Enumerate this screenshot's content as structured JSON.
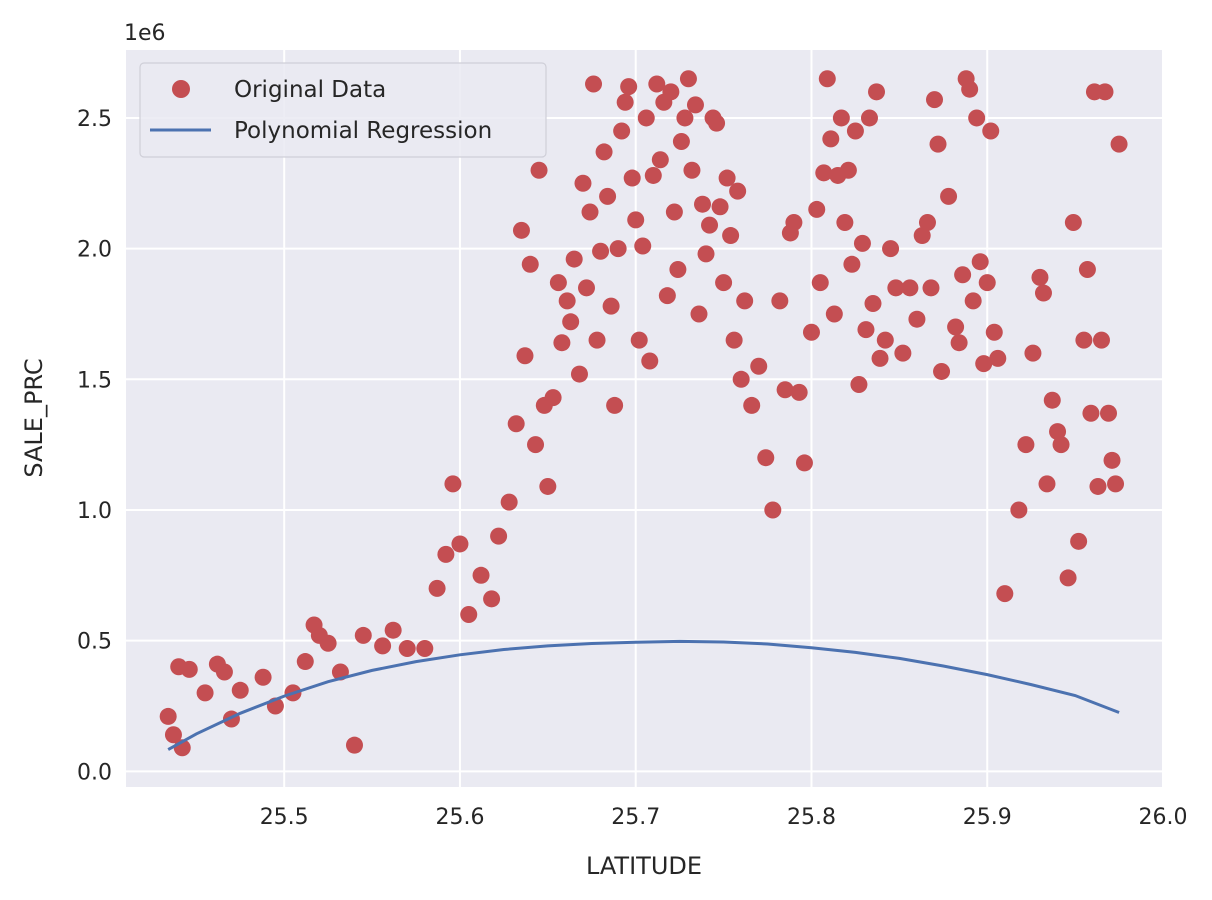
{
  "chart_data": {
    "type": "scatter",
    "title": "",
    "xlabel": "LATITUDE",
    "ylabel": "SALE_PRC",
    "y_offset_text": "1e6",
    "xlim": [
      25.41,
      26.0
    ],
    "ylim": [
      -60000,
      2760000
    ],
    "xticks": [
      25.5,
      25.6,
      25.7,
      25.8,
      25.9,
      26.0
    ],
    "xtick_labels": [
      "25.5",
      "25.6",
      "25.7",
      "25.8",
      "25.9",
      "26.0"
    ],
    "yticks": [
      0,
      500000,
      1000000,
      1500000,
      2000000,
      2500000
    ],
    "ytick_labels": [
      "0.0",
      "0.5",
      "1.0",
      "1.5",
      "2.0",
      "2.5"
    ],
    "grid": true,
    "legend_position": "top-left",
    "colors": {
      "background": "#EAEAF2",
      "grid": "#FFFFFF",
      "points": "#C44E52",
      "line": "#4C72B0"
    },
    "series": [
      {
        "name": "Original Data",
        "kind": "scatter",
        "points": [
          [
            25.434,
            210000
          ],
          [
            25.437,
            140000
          ],
          [
            25.44,
            400000
          ],
          [
            25.442,
            90000
          ],
          [
            25.446,
            390000
          ],
          [
            25.455,
            300000
          ],
          [
            25.462,
            410000
          ],
          [
            25.466,
            380000
          ],
          [
            25.47,
            200000
          ],
          [
            25.475,
            310000
          ],
          [
            25.488,
            360000
          ],
          [
            25.495,
            250000
          ],
          [
            25.505,
            300000
          ],
          [
            25.512,
            420000
          ],
          [
            25.517,
            560000
          ],
          [
            25.52,
            520000
          ],
          [
            25.525,
            490000
          ],
          [
            25.532,
            380000
          ],
          [
            25.54,
            100000
          ],
          [
            25.545,
            520000
          ],
          [
            25.556,
            480000
          ],
          [
            25.562,
            540000
          ],
          [
            25.57,
            470000
          ],
          [
            25.58,
            470000
          ],
          [
            25.587,
            700000
          ],
          [
            25.592,
            830000
          ],
          [
            25.596,
            1100000
          ],
          [
            25.6,
            870000
          ],
          [
            25.605,
            600000
          ],
          [
            25.612,
            750000
          ],
          [
            25.618,
            660000
          ],
          [
            25.622,
            900000
          ],
          [
            25.628,
            1030000
          ],
          [
            25.632,
            1330000
          ],
          [
            25.635,
            2070000
          ],
          [
            25.637,
            1590000
          ],
          [
            25.64,
            1940000
          ],
          [
            25.643,
            1250000
          ],
          [
            25.645,
            2300000
          ],
          [
            25.648,
            1400000
          ],
          [
            25.65,
            1090000
          ],
          [
            25.653,
            1430000
          ],
          [
            25.656,
            1870000
          ],
          [
            25.658,
            1640000
          ],
          [
            25.661,
            1800000
          ],
          [
            25.663,
            1720000
          ],
          [
            25.665,
            1960000
          ],
          [
            25.668,
            1520000
          ],
          [
            25.67,
            2250000
          ],
          [
            25.672,
            1850000
          ],
          [
            25.674,
            2140000
          ],
          [
            25.676,
            2630000
          ],
          [
            25.678,
            1650000
          ],
          [
            25.68,
            1990000
          ],
          [
            25.682,
            2370000
          ],
          [
            25.684,
            2200000
          ],
          [
            25.686,
            1780000
          ],
          [
            25.688,
            1400000
          ],
          [
            25.69,
            2000000
          ],
          [
            25.692,
            2450000
          ],
          [
            25.694,
            2560000
          ],
          [
            25.696,
            2620000
          ],
          [
            25.698,
            2270000
          ],
          [
            25.7,
            2110000
          ],
          [
            25.702,
            1650000
          ],
          [
            25.704,
            2010000
          ],
          [
            25.706,
            2500000
          ],
          [
            25.708,
            1570000
          ],
          [
            25.71,
            2280000
          ],
          [
            25.712,
            2630000
          ],
          [
            25.714,
            2340000
          ],
          [
            25.716,
            2560000
          ],
          [
            25.718,
            1820000
          ],
          [
            25.72,
            2600000
          ],
          [
            25.722,
            2140000
          ],
          [
            25.724,
            1920000
          ],
          [
            25.726,
            2410000
          ],
          [
            25.728,
            2500000
          ],
          [
            25.73,
            2650000
          ],
          [
            25.732,
            2300000
          ],
          [
            25.734,
            2550000
          ],
          [
            25.736,
            1750000
          ],
          [
            25.738,
            2170000
          ],
          [
            25.74,
            1980000
          ],
          [
            25.742,
            2090000
          ],
          [
            25.744,
            2500000
          ],
          [
            25.746,
            2480000
          ],
          [
            25.748,
            2160000
          ],
          [
            25.75,
            1870000
          ],
          [
            25.752,
            2270000
          ],
          [
            25.754,
            2050000
          ],
          [
            25.756,
            1650000
          ],
          [
            25.758,
            2220000
          ],
          [
            25.76,
            1500000
          ],
          [
            25.762,
            1800000
          ],
          [
            25.766,
            1400000
          ],
          [
            25.77,
            1550000
          ],
          [
            25.774,
            1200000
          ],
          [
            25.778,
            1000000
          ],
          [
            25.782,
            1800000
          ],
          [
            25.785,
            1460000
          ],
          [
            25.788,
            2060000
          ],
          [
            25.79,
            2100000
          ],
          [
            25.793,
            1450000
          ],
          [
            25.796,
            1180000
          ],
          [
            25.8,
            1680000
          ],
          [
            25.803,
            2150000
          ],
          [
            25.805,
            1870000
          ],
          [
            25.807,
            2290000
          ],
          [
            25.809,
            2650000
          ],
          [
            25.811,
            2420000
          ],
          [
            25.813,
            1750000
          ],
          [
            25.815,
            2280000
          ],
          [
            25.817,
            2500000
          ],
          [
            25.819,
            2100000
          ],
          [
            25.821,
            2300000
          ],
          [
            25.823,
            1940000
          ],
          [
            25.825,
            2450000
          ],
          [
            25.827,
            1480000
          ],
          [
            25.829,
            2020000
          ],
          [
            25.831,
            1690000
          ],
          [
            25.833,
            2500000
          ],
          [
            25.835,
            1790000
          ],
          [
            25.837,
            2600000
          ],
          [
            25.839,
            1580000
          ],
          [
            25.842,
            1650000
          ],
          [
            25.845,
            2000000
          ],
          [
            25.848,
            1850000
          ],
          [
            25.852,
            1600000
          ],
          [
            25.856,
            1850000
          ],
          [
            25.86,
            1730000
          ],
          [
            25.863,
            2050000
          ],
          [
            25.866,
            2100000
          ],
          [
            25.868,
            1850000
          ],
          [
            25.87,
            2570000
          ],
          [
            25.872,
            2400000
          ],
          [
            25.874,
            1530000
          ],
          [
            25.878,
            2200000
          ],
          [
            25.882,
            1700000
          ],
          [
            25.884,
            1640000
          ],
          [
            25.886,
            1900000
          ],
          [
            25.888,
            2650000
          ],
          [
            25.89,
            2610000
          ],
          [
            25.892,
            1800000
          ],
          [
            25.894,
            2500000
          ],
          [
            25.896,
            1950000
          ],
          [
            25.898,
            1560000
          ],
          [
            25.9,
            1870000
          ],
          [
            25.902,
            2450000
          ],
          [
            25.904,
            1680000
          ],
          [
            25.906,
            1580000
          ],
          [
            25.91,
            680000
          ],
          [
            25.918,
            1000000
          ],
          [
            25.922,
            1250000
          ],
          [
            25.926,
            1600000
          ],
          [
            25.93,
            1890000
          ],
          [
            25.932,
            1830000
          ],
          [
            25.934,
            1100000
          ],
          [
            25.937,
            1420000
          ],
          [
            25.94,
            1300000
          ],
          [
            25.942,
            1250000
          ],
          [
            25.946,
            740000
          ],
          [
            25.949,
            2100000
          ],
          [
            25.952,
            880000
          ],
          [
            25.955,
            1650000
          ],
          [
            25.957,
            1920000
          ],
          [
            25.959,
            1370000
          ],
          [
            25.961,
            2600000
          ],
          [
            25.963,
            1090000
          ],
          [
            25.965,
            1650000
          ],
          [
            25.967,
            2600000
          ],
          [
            25.969,
            1370000
          ],
          [
            25.971,
            1190000
          ],
          [
            25.973,
            1100000
          ],
          [
            25.975,
            2400000
          ]
        ]
      },
      {
        "name": "Polynomial Regression",
        "kind": "line",
        "points": [
          [
            25.434,
            83000
          ],
          [
            25.45,
            143000
          ],
          [
            25.475,
            222000
          ],
          [
            25.5,
            288000
          ],
          [
            25.525,
            343000
          ],
          [
            25.55,
            386000
          ],
          [
            25.575,
            420000
          ],
          [
            25.6,
            446000
          ],
          [
            25.625,
            466000
          ],
          [
            25.65,
            480000
          ],
          [
            25.675,
            489000
          ],
          [
            25.7,
            494000
          ],
          [
            25.725,
            497000
          ],
          [
            25.75,
            495000
          ],
          [
            25.775,
            487000
          ],
          [
            25.8,
            473000
          ],
          [
            25.825,
            455000
          ],
          [
            25.85,
            432000
          ],
          [
            25.875,
            403000
          ],
          [
            25.9,
            370000
          ],
          [
            25.925,
            332000
          ],
          [
            25.95,
            290000
          ],
          [
            25.975,
            225000
          ]
        ]
      }
    ]
  }
}
